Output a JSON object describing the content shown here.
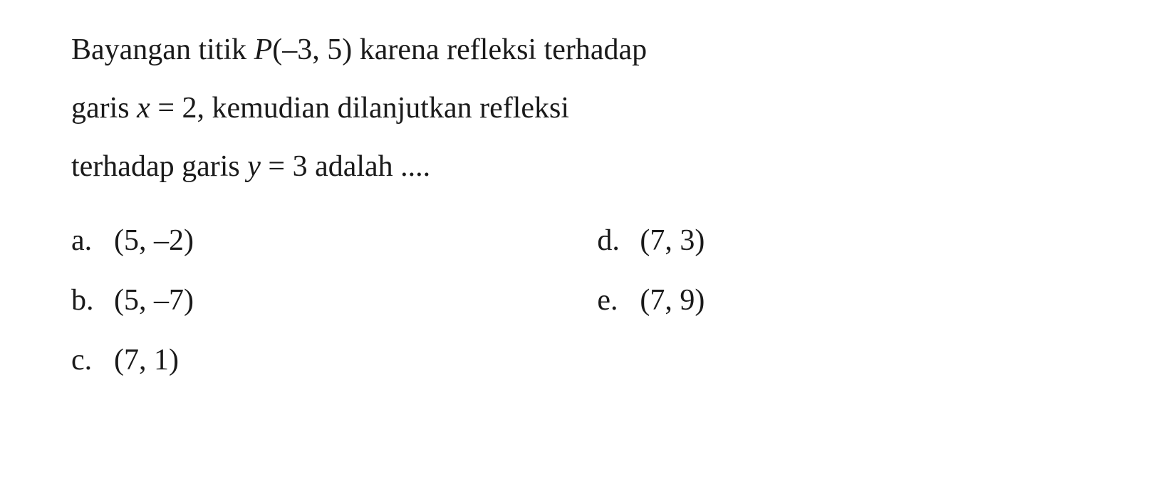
{
  "question": {
    "line1_part1": "Bayangan titik ",
    "line1_point": "P",
    "line1_part2": "(–3, 5) karena refleksi terhadap",
    "line2_part1": "garis ",
    "line2_var1": "x",
    "line2_part2": " = 2, kemudian dilanjutkan refleksi",
    "line3_part1": "terhadap garis ",
    "line3_var1": "y",
    "line3_part2": " = 3 adalah ...."
  },
  "options": {
    "a": {
      "label": "a.",
      "value": "(5, –2)"
    },
    "b": {
      "label": "b.",
      "value": "(5, –7)"
    },
    "c": {
      "label": "c.",
      "value": "(7, 1)"
    },
    "d": {
      "label": "d.",
      "value": "(7, 3)"
    },
    "e": {
      "label": "e.",
      "value": "(7, 9)"
    }
  },
  "style": {
    "font_size_pt": 42,
    "line_height": 1.95,
    "text_color": "#1a1a1a",
    "background_color": "#ffffff",
    "font_family": "Georgia, Times New Roman, serif"
  }
}
